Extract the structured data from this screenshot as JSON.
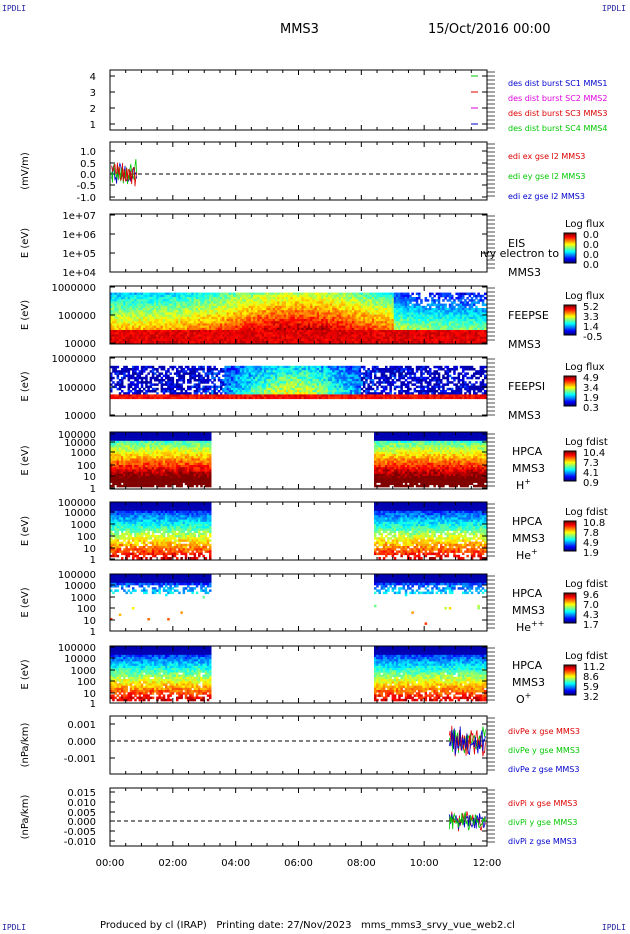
{
  "corners": {
    "tl": "IPDLI",
    "tr": "IPDLI",
    "bl": "IPDLI",
    "br": "IPDLI"
  },
  "header": {
    "spacecraft": "MMS3",
    "date": "15/Oct/2016 00:00"
  },
  "footer": {
    "credit": "Produced by cl (IRAP)   Printing date: 27/Nov/2023   mms_mms3_srvy_vue_web2.cl"
  },
  "colors": {
    "red": "#dd0000",
    "green": "#00c800",
    "blue": "#0000cc",
    "magenta": "#dd00dd"
  },
  "chart_data": {
    "type": "multi-panel time series / spectrograms",
    "x_axis": {
      "tick_labels": [
        "00:00",
        "02:00",
        "04:00",
        "06:00",
        "08:00",
        "10:00",
        "12:00"
      ],
      "range_hours": [
        0,
        12
      ]
    },
    "panels": [
      {
        "id": "burst",
        "type": "line",
        "yticks": [
          "4",
          "3",
          "2",
          "1"
        ],
        "legend": [
          {
            "text": "des dist burst SC1 MMS1",
            "color": "#0000cc"
          },
          {
            "text": "des dist burst SC2 MMS2",
            "color": "#dd00dd"
          },
          {
            "text": "des dist burst SC3 MMS3",
            "color": "#dd0000"
          },
          {
            "text": "des dist burst SC4 MMS4",
            "color": "#00c800"
          }
        ]
      },
      {
        "id": "edi",
        "type": "line",
        "ylabel": "(mV/m)",
        "yticks": [
          "1.0",
          "0.5",
          "0.0",
          "-0.5",
          "-1.0"
        ],
        "legend": [
          {
            "text": "edi ex gse l2 MMS3",
            "color": "#dd0000"
          },
          {
            "text": "edi ey gse l2 MMS3",
            "color": "#00c800"
          },
          {
            "text": "edi ez gse l2 MMS3",
            "color": "#0000cc"
          }
        ]
      },
      {
        "id": "eis",
        "type": "heatmap",
        "ylabel": "E (eV)",
        "yticks": [
          "1e+07",
          "1e+06",
          "1e+05",
          "1e+04"
        ],
        "labels": [
          "EIS",
          "MMS3"
        ],
        "overlay": "ıvy electron to",
        "colorbar": {
          "title": "Log flux",
          "ticks": [
            "0.0",
            "0.0",
            "0.0",
            "0.0"
          ]
        }
      },
      {
        "id": "feepse",
        "type": "heatmap",
        "ylabel": "E (eV)",
        "yticks": [
          "1000000",
          "100000",
          "10000"
        ],
        "labels": [
          "FEEPSE",
          "MMS3"
        ],
        "colorbar": {
          "title": "Log flux",
          "ticks": [
            "5.2",
            "3.3",
            "1.4",
            "-0.5"
          ]
        }
      },
      {
        "id": "feepsi",
        "type": "heatmap",
        "ylabel": "E (eV)",
        "yticks": [
          "1000000",
          "100000",
          "10000"
        ],
        "labels": [
          "FEEPSI",
          "MMS3"
        ],
        "colorbar": {
          "title": "Log flux",
          "ticks": [
            "4.9",
            "3.4",
            "1.9",
            "0.3"
          ]
        }
      },
      {
        "id": "hpca_h",
        "type": "heatmap",
        "ylabel": "E (eV)",
        "yticks": [
          "100000",
          "10000",
          "1000",
          "100",
          "10",
          "1"
        ],
        "labels": [
          "HPCA",
          "MMS3"
        ],
        "species": "H",
        "charge": "+",
        "colorbar": {
          "title": "Log fdist",
          "ticks": [
            "10.4",
            "7.3",
            "4.1",
            "0.9"
          ]
        }
      },
      {
        "id": "hpca_he",
        "type": "heatmap",
        "ylabel": "E (eV)",
        "yticks": [
          "100000",
          "10000",
          "1000",
          "100",
          "10",
          "1"
        ],
        "labels": [
          "HPCA",
          "MMS3"
        ],
        "species": "He",
        "charge": "+",
        "colorbar": {
          "title": "Log fdist",
          "ticks": [
            "10.8",
            "7.8",
            "4.9",
            "1.9"
          ]
        }
      },
      {
        "id": "hpca_he2",
        "type": "heatmap",
        "ylabel": "E (eV)",
        "yticks": [
          "100000",
          "10000",
          "1000",
          "100",
          "10",
          "1"
        ],
        "labels": [
          "HPCA",
          "MMS3"
        ],
        "species": "He",
        "charge": "++",
        "colorbar": {
          "title": "Log fdist",
          "ticks": [
            "9.6",
            "7.0",
            "4.3",
            "1.7"
          ]
        }
      },
      {
        "id": "hpca_o",
        "type": "heatmap",
        "ylabel": "E (eV)",
        "yticks": [
          "100000",
          "10000",
          "1000",
          "100",
          "10",
          "1"
        ],
        "labels": [
          "HPCA",
          "MMS3"
        ],
        "species": "O",
        "charge": "+",
        "colorbar": {
          "title": "Log fdist",
          "ticks": [
            "11.2",
            "8.6",
            "5.9",
            "3.2"
          ]
        }
      },
      {
        "id": "divpe",
        "type": "line",
        "ylabel": "(nPa/km)",
        "yticks": [
          "0.001",
          "0.000",
          "-0.001"
        ],
        "legend": [
          {
            "text": "divPe x gse MMS3",
            "color": "#dd0000"
          },
          {
            "text": "divPe y gse MMS3",
            "color": "#00c800"
          },
          {
            "text": "divPe z gse MMS3",
            "color": "#0000cc"
          }
        ]
      },
      {
        "id": "divpi",
        "type": "line",
        "ylabel": "(nPa/km)",
        "yticks": [
          "0.015",
          "0.010",
          "0.005",
          "0.000",
          "-0.005",
          "-0.010"
        ],
        "legend": [
          {
            "text": "divPi x gse MMS3",
            "color": "#dd0000"
          },
          {
            "text": "divPi y gse MMS3",
            "color": "#00c800"
          },
          {
            "text": "divPi z gse MMS3",
            "color": "#0000cc"
          }
        ]
      }
    ]
  }
}
